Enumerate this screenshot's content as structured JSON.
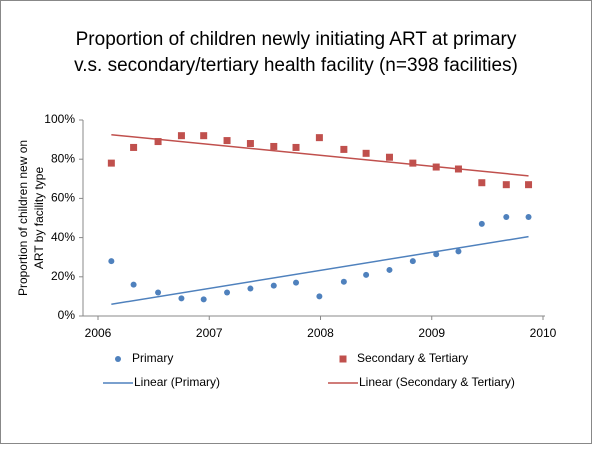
{
  "chart_data": {
    "type": "scatter",
    "title": [
      "Proportion of children newly initiating ART at primary",
      "v.s. secondary/tertiary  health facility (n=398 facilities)"
    ],
    "y_label": [
      "Proportion of children  new on",
      "ART by facility type"
    ],
    "x": [
      2006.12,
      2006.32,
      2006.54,
      2006.75,
      2006.95,
      2007.16,
      2007.37,
      2007.58,
      2007.78,
      2007.99,
      2008.21,
      2008.41,
      2008.62,
      2008.83,
      2009.04,
      2009.24,
      2009.45,
      2009.67,
      2009.87
    ],
    "series": [
      {
        "name": "Primary",
        "color": "#4f81bd",
        "marker": "circle",
        "values": [
          28,
          16,
          12,
          9,
          8.5,
          12,
          14,
          15.5,
          17,
          10,
          17.5,
          21,
          23.5,
          28,
          31.5,
          33,
          47,
          50.5,
          50.5
        ]
      },
      {
        "name": "Secondary & Tertiary",
        "color": "#c0504d",
        "marker": "square",
        "values": [
          78,
          86,
          89,
          92,
          92,
          89.5,
          88,
          86.5,
          86,
          91,
          85,
          83,
          81,
          78,
          76,
          75,
          68,
          67,
          67
        ]
      },
      {
        "name": "Linear (Primary)",
        "color": "#4f81bd",
        "marker": "line",
        "x": [
          2006.12,
          2009.87
        ],
        "values": [
          6,
          40.5
        ]
      },
      {
        "name": "Linear (Secondary & Tertiary)",
        "color": "#c0504d",
        "marker": "line",
        "x": [
          2006.12,
          2009.87
        ],
        "values": [
          92.5,
          71.5
        ]
      }
    ],
    "xlim": [
      2006,
      2010
    ],
    "xticks": [
      2006,
      2007,
      2008,
      2009,
      2010
    ],
    "ylim": [
      0,
      100
    ],
    "yticks": [
      {
        "value": 0,
        "label": "0%"
      },
      {
        "value": 20,
        "label": "20%"
      },
      {
        "value": 40,
        "label": "40%"
      },
      {
        "value": 60,
        "label": "60%"
      },
      {
        "value": 80,
        "label": "80%"
      },
      {
        "value": 100,
        "label": "100%"
      }
    ],
    "legend": "bottom"
  }
}
